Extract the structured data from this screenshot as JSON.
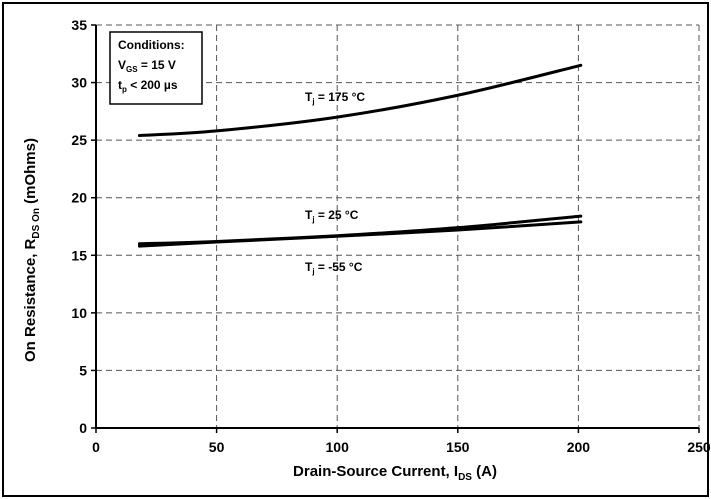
{
  "chart_data": {
    "type": "line",
    "xlabel": {
      "main": "Drain-Source Current, I",
      "sub": "DS",
      "tail": " (A)"
    },
    "ylabel": {
      "main": "On Resistance, R",
      "sub": "DS On",
      "tail": " (mOhms)"
    },
    "xlim": [
      0,
      250
    ],
    "ylim": [
      0,
      35
    ],
    "xticks": [
      "0",
      "50",
      "100",
      "150",
      "200",
      "250"
    ],
    "yticks": [
      "0",
      "5",
      "10",
      "15",
      "20",
      "25",
      "30",
      "35"
    ],
    "grid": true,
    "conditions": {
      "title": "Conditions:",
      "line1": {
        "main": "V",
        "sub": "GS",
        "tail": " = 15 V"
      },
      "line2": {
        "main": "t",
        "sub": "p",
        "tail": " < 200 µs"
      }
    },
    "series": [
      {
        "name": {
          "main": "T",
          "sub": "j",
          "tail": " = 175 °C"
        },
        "x": [
          18,
          50,
          100,
          150,
          201
        ],
        "y": [
          25.4,
          25.8,
          27.0,
          28.9,
          31.5
        ]
      },
      {
        "name": {
          "main": "T",
          "sub": "j",
          "tail": " = 25 °C"
        },
        "x": [
          18,
          50,
          100,
          150,
          201
        ],
        "y": [
          16.0,
          16.2,
          16.7,
          17.4,
          18.4
        ]
      },
      {
        "name": {
          "main": "T",
          "sub": "j",
          "tail": " = -55 °C"
        },
        "x": [
          18,
          50,
          100,
          150,
          201
        ],
        "y": [
          15.8,
          16.15,
          16.65,
          17.2,
          17.9
        ]
      }
    ]
  }
}
